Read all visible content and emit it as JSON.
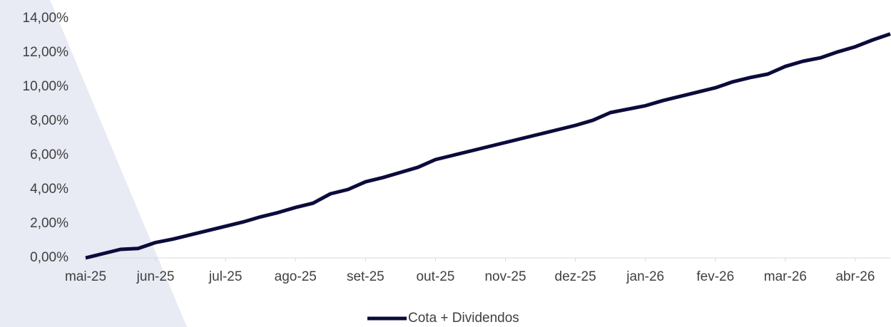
{
  "chart_data": {
    "type": "line",
    "categories": [
      "mai-25",
      null,
      null,
      null,
      "jun-25",
      null,
      null,
      null,
      "jul-25",
      null,
      null,
      null,
      "ago-25",
      null,
      null,
      null,
      "set-25",
      null,
      null,
      null,
      "out-25",
      null,
      null,
      null,
      "nov-25",
      null,
      null,
      null,
      "dez-25",
      null,
      null,
      null,
      "jan-26",
      null,
      null,
      null,
      "fev-26",
      null,
      null,
      null,
      "mar-26",
      null,
      null,
      null,
      "abr-26",
      null,
      null
    ],
    "series": [
      {
        "name": "Cota + Dividendos",
        "color": "#0b0b3b",
        "values": [
          0.0,
          0.25,
          0.5,
          0.55,
          0.9,
          1.1,
          1.35,
          1.6,
          1.85,
          2.1,
          2.4,
          2.65,
          2.95,
          3.2,
          3.75,
          4.0,
          4.45,
          4.7,
          5.0,
          5.3,
          5.75,
          6.0,
          6.25,
          6.5,
          6.75,
          7.0,
          7.25,
          7.5,
          7.75,
          8.05,
          8.5,
          8.7,
          8.9,
          9.2,
          9.45,
          9.7,
          9.95,
          10.3,
          10.55,
          10.75,
          11.2,
          11.5,
          11.7,
          12.05,
          12.35,
          12.75,
          13.1
        ]
      }
    ],
    "ylim": [
      0,
      14
    ],
    "yticks": [
      {
        "value": 0,
        "label": "0,00%"
      },
      {
        "value": 2,
        "label": "2,00%"
      },
      {
        "value": 4,
        "label": "4,00%"
      },
      {
        "value": 6,
        "label": "6,00%"
      },
      {
        "value": 8,
        "label": "8,00%"
      },
      {
        "value": 10,
        "label": "10,00%"
      },
      {
        "value": 12,
        "label": "12,00%"
      },
      {
        "value": 14,
        "label": "14,00%"
      }
    ],
    "legend": "bottom"
  }
}
